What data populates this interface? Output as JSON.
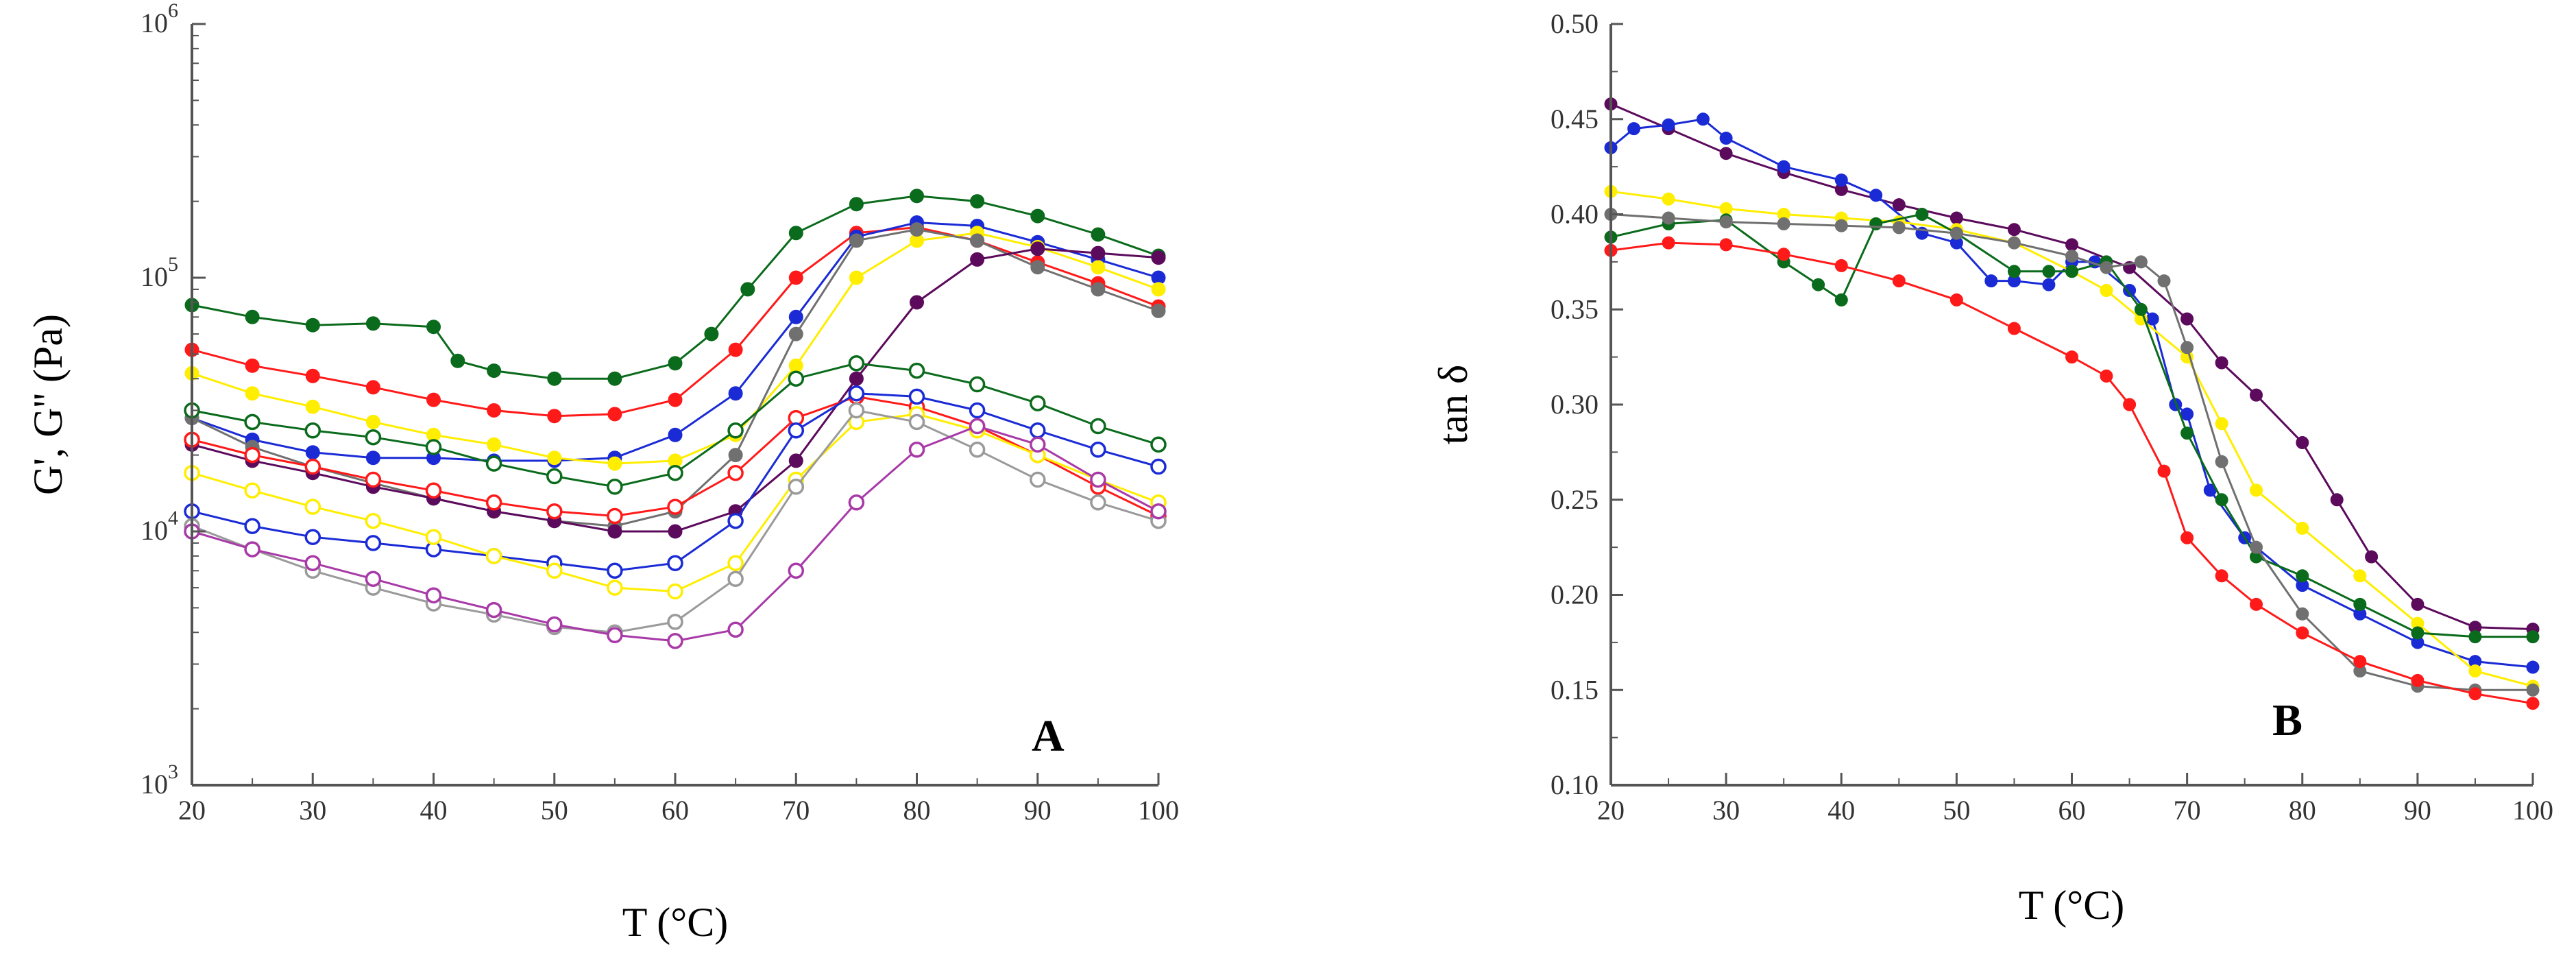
{
  "figure": {
    "panels": [
      "A",
      "B"
    ]
  },
  "chart_data": [
    {
      "panel": "A",
      "type": "line",
      "title": "",
      "xlabel": "T (°C)",
      "ylabel": "G', G'' (Pa)",
      "xlim": [
        20,
        100
      ],
      "ylim": [
        1000,
        1000000
      ],
      "yscale": "log",
      "grid": false,
      "xticks": [
        "20",
        "30",
        "40",
        "50",
        "60",
        "70",
        "80",
        "90",
        "100"
      ],
      "yticks": [
        {
          "base": "10",
          "exp": "3"
        },
        {
          "base": "10",
          "exp": "4"
        },
        {
          "base": "10",
          "exp": "5"
        },
        {
          "base": "10",
          "exp": "6"
        }
      ],
      "series": [
        {
          "name": "G' dark green",
          "color": "#0b6b1c",
          "filled": true,
          "x": [
            20,
            25,
            30,
            35,
            40,
            42,
            45,
            50,
            55,
            60,
            63,
            66,
            70,
            75,
            80,
            85,
            90,
            95,
            100
          ],
          "y": [
            78000,
            70000,
            65000,
            66000,
            64000,
            47000,
            43000,
            40000,
            40000,
            46000,
            60000,
            90000,
            150000,
            195000,
            210000,
            200000,
            175000,
            148000,
            122000
          ]
        },
        {
          "name": "G' red",
          "color": "#ff1a1a",
          "filled": true,
          "x": [
            20,
            25,
            30,
            35,
            40,
            45,
            50,
            55,
            60,
            65,
            70,
            75,
            80,
            85,
            90,
            95,
            100
          ],
          "y": [
            52000,
            45000,
            41000,
            37000,
            33000,
            30000,
            28500,
            29000,
            33000,
            52000,
            100000,
            150000,
            158000,
            140000,
            115000,
            95000,
            77000
          ]
        },
        {
          "name": "G' blue",
          "color": "#1a2bd6",
          "filled": true,
          "x": [
            20,
            25,
            30,
            35,
            40,
            45,
            50,
            55,
            60,
            65,
            70,
            75,
            80,
            85,
            90,
            95,
            100
          ],
          "y": [
            28000,
            23000,
            20500,
            19500,
            19500,
            19000,
            19000,
            19500,
            24000,
            35000,
            70000,
            145000,
            165000,
            160000,
            138000,
            118000,
            100000
          ]
        },
        {
          "name": "G' yellow",
          "color": "#ffee00",
          "filled": true,
          "x": [
            20,
            25,
            30,
            35,
            40,
            45,
            50,
            55,
            60,
            65,
            70,
            75,
            80,
            85,
            90,
            95,
            100
          ],
          "y": [
            42000,
            35000,
            31000,
            27000,
            24000,
            22000,
            19500,
            18500,
            19000,
            24000,
            45000,
            100000,
            140000,
            150000,
            132000,
            110000,
            90000
          ]
        },
        {
          "name": "G' grey",
          "color": "#707070",
          "filled": true,
          "x": [
            20,
            25,
            30,
            35,
            40,
            45,
            50,
            55,
            60,
            65,
            70,
            75,
            80,
            85,
            90,
            95,
            100
          ],
          "y": [
            28000,
            21500,
            18000,
            15500,
            13500,
            12000,
            11000,
            10500,
            12000,
            20000,
            60000,
            140000,
            155000,
            140000,
            110000,
            90000,
            74000
          ]
        },
        {
          "name": "G' purple",
          "color": "#5c0a5c",
          "filled": true,
          "x": [
            20,
            25,
            30,
            35,
            40,
            45,
            50,
            55,
            60,
            65,
            70,
            75,
            80,
            85,
            90,
            95,
            100
          ],
          "y": [
            22000,
            19000,
            17000,
            15000,
            13500,
            12000,
            11000,
            10000,
            10000,
            12000,
            19000,
            40000,
            80000,
            118000,
            130000,
            125000,
            120000
          ]
        },
        {
          "name": "G'' green",
          "color": "#0b6b1c",
          "filled": false,
          "x": [
            20,
            25,
            30,
            35,
            40,
            45,
            50,
            55,
            60,
            65,
            70,
            75,
            80,
            85,
            90,
            95,
            100
          ],
          "y": [
            30000,
            27000,
            25000,
            23500,
            21500,
            18500,
            16500,
            15000,
            17000,
            25000,
            40000,
            46000,
            43000,
            38000,
            32000,
            26000,
            22000
          ]
        },
        {
          "name": "G'' red",
          "color": "#ff1a1a",
          "filled": false,
          "x": [
            20,
            25,
            30,
            35,
            40,
            45,
            50,
            55,
            60,
            65,
            70,
            75,
            80,
            85,
            90,
            95,
            100
          ],
          "y": [
            23000,
            20000,
            18000,
            16000,
            14500,
            13000,
            12000,
            11500,
            12500,
            17000,
            28000,
            34000,
            31000,
            26000,
            20000,
            15000,
            11500
          ]
        },
        {
          "name": "G'' blue",
          "color": "#1a2bd6",
          "filled": false,
          "x": [
            20,
            25,
            30,
            35,
            40,
            45,
            50,
            55,
            60,
            65,
            70,
            75,
            80,
            85,
            90,
            95,
            100
          ],
          "y": [
            12000,
            10500,
            9500,
            9000,
            8500,
            8000,
            7500,
            7000,
            7500,
            11000,
            25000,
            35000,
            34000,
            30000,
            25000,
            21000,
            18000
          ]
        },
        {
          "name": "G'' yellow",
          "color": "#ffee00",
          "filled": false,
          "x": [
            20,
            25,
            30,
            35,
            40,
            45,
            50,
            55,
            60,
            65,
            70,
            75,
            80,
            85,
            90,
            95,
            100
          ],
          "y": [
            17000,
            14500,
            12500,
            11000,
            9500,
            8000,
            7000,
            6000,
            5800,
            7500,
            16000,
            27000,
            29000,
            25000,
            20000,
            16000,
            13000
          ]
        },
        {
          "name": "G'' grey",
          "color": "#9a9a9a",
          "filled": false,
          "x": [
            20,
            25,
            30,
            35,
            40,
            45,
            50,
            55,
            60,
            65,
            70,
            75,
            80,
            85,
            90,
            95,
            100
          ],
          "y": [
            10500,
            8500,
            7000,
            6000,
            5200,
            4700,
            4200,
            4000,
            4400,
            6500,
            15000,
            30000,
            27000,
            21000,
            16000,
            13000,
            11000
          ]
        },
        {
          "name": "G'' purple",
          "color": "#a83aa8",
          "filled": false,
          "x": [
            20,
            25,
            30,
            35,
            40,
            45,
            50,
            55,
            60,
            65,
            70,
            75,
            80,
            85,
            90,
            95,
            100
          ],
          "y": [
            10000,
            8500,
            7500,
            6500,
            5600,
            4900,
            4300,
            3900,
            3700,
            4100,
            7000,
            13000,
            21000,
            26000,
            22000,
            16000,
            12000
          ]
        }
      ]
    },
    {
      "panel": "B",
      "type": "line",
      "title": "",
      "xlabel": "T (°C)",
      "ylabel": "tan δ",
      "xlim": [
        20,
        100
      ],
      "ylim": [
        0.1,
        0.5
      ],
      "yscale": "linear",
      "grid": false,
      "xticks": [
        "20",
        "30",
        "40",
        "50",
        "60",
        "70",
        "80",
        "90",
        "100"
      ],
      "yticks": [
        "0.10",
        "0.15",
        "0.20",
        "0.25",
        "0.30",
        "0.35",
        "0.40",
        "0.45",
        "0.50"
      ],
      "series": [
        {
          "name": "purple",
          "color": "#5c0a5c",
          "x": [
            20,
            25,
            30,
            35,
            40,
            45,
            50,
            55,
            60,
            65,
            70,
            73,
            76,
            80,
            83,
            86,
            90,
            95,
            100
          ],
          "y": [
            0.458,
            0.445,
            0.432,
            0.422,
            0.413,
            0.405,
            0.398,
            0.392,
            0.384,
            0.372,
            0.345,
            0.322,
            0.305,
            0.28,
            0.25,
            0.22,
            0.195,
            0.183,
            0.182
          ]
        },
        {
          "name": "blue",
          "color": "#1a2bd6",
          "x": [
            20,
            22,
            25,
            28,
            30,
            35,
            40,
            43,
            47,
            50,
            53,
            55,
            58,
            60,
            62,
            65,
            67,
            69,
            70,
            72,
            75,
            80,
            85,
            90,
            95,
            100
          ],
          "y": [
            0.435,
            0.445,
            0.447,
            0.45,
            0.44,
            0.425,
            0.418,
            0.41,
            0.39,
            0.385,
            0.365,
            0.365,
            0.363,
            0.375,
            0.375,
            0.36,
            0.345,
            0.3,
            0.295,
            0.255,
            0.23,
            0.205,
            0.19,
            0.175,
            0.165,
            0.162
          ]
        },
        {
          "name": "yellow",
          "color": "#ffee00",
          "x": [
            20,
            25,
            30,
            35,
            40,
            45,
            50,
            55,
            60,
            63,
            66,
            70,
            73,
            76,
            80,
            85,
            90,
            95,
            100
          ],
          "y": [
            0.412,
            0.408,
            0.403,
            0.4,
            0.398,
            0.396,
            0.392,
            0.385,
            0.37,
            0.36,
            0.345,
            0.325,
            0.29,
            0.255,
            0.235,
            0.21,
            0.185,
            0.16,
            0.152
          ]
        },
        {
          "name": "green",
          "color": "#0b6b1c",
          "x": [
            20,
            25,
            30,
            35,
            38,
            40,
            43,
            47,
            50,
            55,
            58,
            60,
            63,
            66,
            70,
            73,
            76,
            80,
            85,
            90,
            95,
            100
          ],
          "y": [
            0.388,
            0.395,
            0.397,
            0.375,
            0.363,
            0.355,
            0.395,
            0.4,
            0.39,
            0.37,
            0.37,
            0.37,
            0.375,
            0.35,
            0.285,
            0.25,
            0.22,
            0.21,
            0.195,
            0.18,
            0.178,
            0.178
          ]
        },
        {
          "name": "grey",
          "color": "#707070",
          "x": [
            20,
            25,
            30,
            35,
            40,
            45,
            50,
            55,
            60,
            63,
            66,
            68,
            70,
            73,
            76,
            80,
            85,
            90,
            95,
            100
          ],
          "y": [
            0.4,
            0.398,
            0.396,
            0.395,
            0.394,
            0.393,
            0.39,
            0.385,
            0.378,
            0.372,
            0.375,
            0.365,
            0.33,
            0.27,
            0.225,
            0.19,
            0.16,
            0.152,
            0.15,
            0.15
          ]
        },
        {
          "name": "red",
          "color": "#ff1a1a",
          "x": [
            20,
            25,
            30,
            35,
            40,
            45,
            50,
            55,
            60,
            63,
            65,
            68,
            70,
            73,
            76,
            80,
            85,
            90,
            95,
            100
          ],
          "y": [
            0.381,
            0.385,
            0.384,
            0.379,
            0.373,
            0.365,
            0.355,
            0.34,
            0.325,
            0.315,
            0.3,
            0.265,
            0.23,
            0.21,
            0.195,
            0.18,
            0.165,
            0.155,
            0.148,
            0.143
          ]
        }
      ]
    }
  ]
}
